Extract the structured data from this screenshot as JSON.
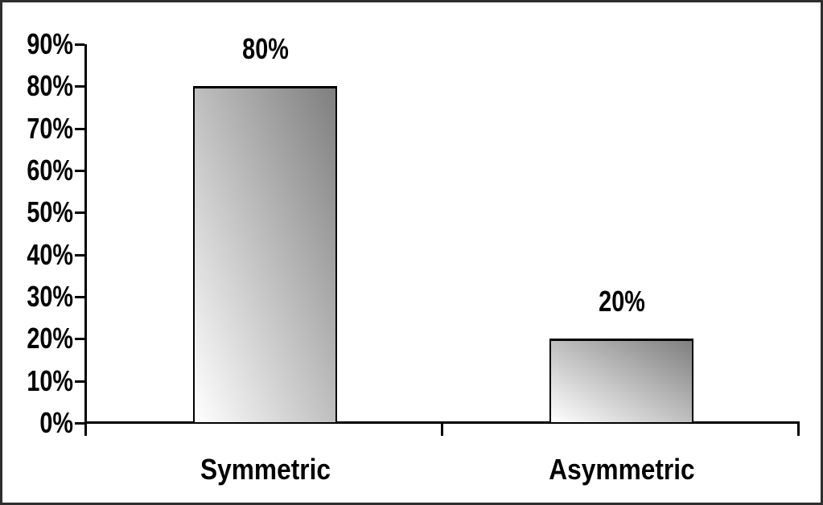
{
  "chart_data": {
    "type": "bar",
    "categories": [
      "Symmetric",
      "Asymmetric"
    ],
    "values": [
      80,
      20
    ],
    "value_labels": [
      "80%",
      "20%"
    ],
    "y_tick_values": [
      90,
      80,
      70,
      60,
      50,
      40,
      30,
      20,
      10,
      0
    ],
    "y_tick_labels": [
      "90%",
      "80%",
      "70%",
      "60%",
      "50%",
      "40%",
      "30%",
      "20%",
      "10%",
      "0%"
    ],
    "ylim": [
      0,
      90
    ],
    "title": "",
    "xlabel": "",
    "ylabel": "",
    "grid": false,
    "legend": "none",
    "colors": {
      "bar_gradient_light": "#ffffff",
      "bar_gradient_dark": "#7f7f7f",
      "bar_border": "#000000",
      "axis": "#000000",
      "text": "#000000",
      "background": "#ffffff",
      "frame": "#2e2e2e"
    }
  }
}
